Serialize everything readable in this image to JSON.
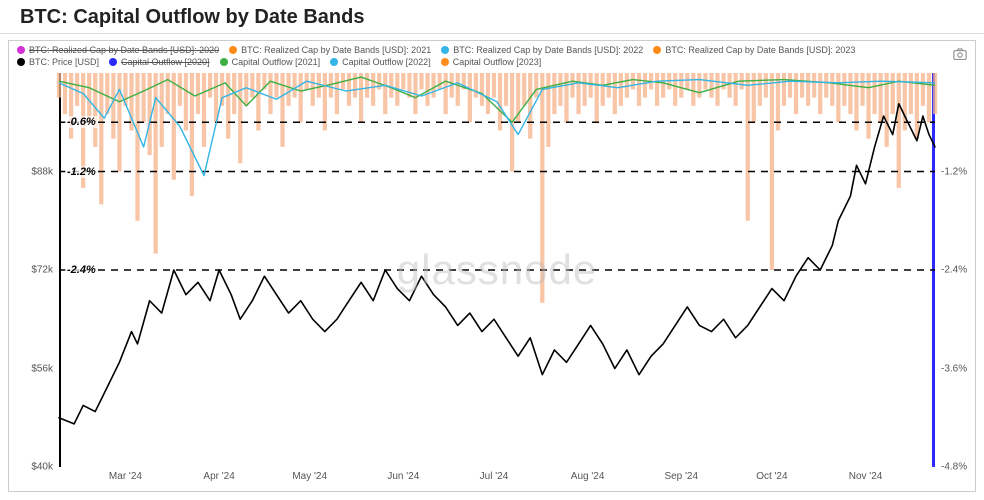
{
  "title": "BTC: Capital Outflow by Date Bands",
  "watermark": "glassnode",
  "legend": [
    {
      "label": "BTC: Realized Cap by Date Bands [USD]: 2020",
      "color": "#d633d6",
      "strike": true
    },
    {
      "label": "BTC: Realized Cap by Date Bands [USD]: 2021",
      "color": "#ff8c1a",
      "strike": false
    },
    {
      "label": "BTC: Realized Cap by Date Bands [USD]: 2022",
      "color": "#33b5e5",
      "strike": false
    },
    {
      "label": "BTC: Realized Cap by Date Bands [USD]: 2023",
      "color": "#ff8c1a",
      "strike": false
    },
    {
      "label": "BTC: Price [USD]",
      "color": "#000000",
      "strike": false
    },
    {
      "label": "Capital Outflow [2020]",
      "color": "#2a2afc",
      "strike": true
    },
    {
      "label": "Capital Outflow [2021]",
      "color": "#3cb043",
      "strike": false
    },
    {
      "label": "Capital Outflow [2022]",
      "color": "#33b5e5",
      "strike": false
    },
    {
      "label": "Capital Outflow [2023]",
      "color": "#ff8c1a",
      "strike": false
    }
  ],
  "y_left": {
    "min": 40000,
    "max": 104000,
    "ticks": [
      {
        "v": 40000,
        "label": "$40k"
      },
      {
        "v": 56000,
        "label": "$56k"
      },
      {
        "v": 72000,
        "label": "$72k"
      },
      {
        "v": 88000,
        "label": "$88k"
      }
    ]
  },
  "y_right": {
    "min": -4.8,
    "max": 0,
    "ticks": [
      {
        "v": -4.8,
        "label": "-4.8%"
      },
      {
        "v": -3.6,
        "label": "-3.6%"
      },
      {
        "v": -2.4,
        "label": "-2.4%"
      },
      {
        "v": -1.2,
        "label": "-1.2%"
      }
    ]
  },
  "x_axis": {
    "min": 0,
    "max": 290,
    "ticks": [
      {
        "v": 22,
        "label": "Mar '24"
      },
      {
        "v": 53,
        "label": "Apr '24"
      },
      {
        "v": 83,
        "label": "May '24"
      },
      {
        "v": 114,
        "label": "Jun '24"
      },
      {
        "v": 144,
        "label": "Jul '24"
      },
      {
        "v": 175,
        "label": "Aug '24"
      },
      {
        "v": 206,
        "label": "Sep '24"
      },
      {
        "v": 236,
        "label": "Oct '24"
      },
      {
        "v": 267,
        "label": "Nov '24"
      }
    ]
  },
  "reference_lines": [
    {
      "y_right": -0.6,
      "label": "-0.6%",
      "label_x": 6
    },
    {
      "y_right": -1.2,
      "label": "-1.2%",
      "label_x": 6
    },
    {
      "y_right": -2.4,
      "label": "-2.4%",
      "label_x": 6
    }
  ],
  "price_series": {
    "color": "#000000",
    "width": 1.6,
    "points": [
      [
        0,
        48000
      ],
      [
        5,
        47000
      ],
      [
        8,
        50000
      ],
      [
        12,
        49000
      ],
      [
        16,
        53000
      ],
      [
        20,
        57000
      ],
      [
        24,
        62000
      ],
      [
        26,
        60000
      ],
      [
        30,
        67000
      ],
      [
        34,
        65000
      ],
      [
        38,
        72000
      ],
      [
        42,
        68000
      ],
      [
        46,
        70000
      ],
      [
        50,
        67000
      ],
      [
        53,
        72000
      ],
      [
        57,
        68000
      ],
      [
        60,
        64000
      ],
      [
        64,
        67000
      ],
      [
        68,
        71000
      ],
      [
        72,
        68000
      ],
      [
        76,
        65000
      ],
      [
        80,
        67000
      ],
      [
        84,
        64000
      ],
      [
        88,
        62000
      ],
      [
        92,
        64000
      ],
      [
        96,
        67000
      ],
      [
        100,
        70000
      ],
      [
        104,
        67000
      ],
      [
        108,
        72000
      ],
      [
        112,
        69000
      ],
      [
        116,
        67000
      ],
      [
        120,
        71000
      ],
      [
        124,
        68000
      ],
      [
        128,
        66000
      ],
      [
        132,
        63000
      ],
      [
        136,
        65000
      ],
      [
        140,
        62000
      ],
      [
        144,
        64000
      ],
      [
        148,
        61000
      ],
      [
        152,
        58000
      ],
      [
        156,
        61000
      ],
      [
        160,
        55000
      ],
      [
        164,
        59000
      ],
      [
        168,
        57000
      ],
      [
        172,
        60000
      ],
      [
        176,
        63000
      ],
      [
        180,
        60000
      ],
      [
        184,
        56000
      ],
      [
        188,
        59000
      ],
      [
        192,
        55000
      ],
      [
        196,
        58000
      ],
      [
        200,
        60000
      ],
      [
        204,
        63000
      ],
      [
        208,
        66000
      ],
      [
        212,
        63000
      ],
      [
        216,
        62000
      ],
      [
        220,
        64000
      ],
      [
        224,
        61000
      ],
      [
        228,
        63000
      ],
      [
        232,
        66000
      ],
      [
        236,
        69000
      ],
      [
        240,
        67000
      ],
      [
        244,
        71000
      ],
      [
        248,
        74000
      ],
      [
        252,
        72000
      ],
      [
        256,
        76000
      ],
      [
        258,
        80000
      ],
      [
        262,
        84000
      ],
      [
        264,
        89000
      ],
      [
        267,
        86000
      ],
      [
        270,
        92000
      ],
      [
        273,
        97000
      ],
      [
        276,
        94000
      ],
      [
        278,
        99000
      ],
      [
        281,
        96000
      ],
      [
        284,
        93000
      ],
      [
        286,
        97000
      ],
      [
        288,
        94000
      ],
      [
        290,
        92000
      ]
    ]
  },
  "outflow_lines": [
    {
      "name": "2021",
      "color": "#3cb043",
      "width": 1.4,
      "points": [
        [
          0,
          -0.1
        ],
        [
          10,
          -0.18
        ],
        [
          20,
          -0.35
        ],
        [
          28,
          -0.22
        ],
        [
          36,
          -0.08
        ],
        [
          45,
          -0.28
        ],
        [
          55,
          -0.12
        ],
        [
          62,
          -0.4
        ],
        [
          70,
          -0.1
        ],
        [
          80,
          -0.22
        ],
        [
          90,
          -0.14
        ],
        [
          100,
          -0.05
        ],
        [
          110,
          -0.18
        ],
        [
          118,
          -0.3
        ],
        [
          128,
          -0.1
        ],
        [
          140,
          -0.25
        ],
        [
          150,
          -0.6
        ],
        [
          158,
          -0.2
        ],
        [
          170,
          -0.1
        ],
        [
          180,
          -0.15
        ],
        [
          190,
          -0.08
        ],
        [
          200,
          -0.12
        ],
        [
          212,
          -0.24
        ],
        [
          225,
          -0.1
        ],
        [
          240,
          -0.08
        ],
        [
          255,
          -0.12
        ],
        [
          268,
          -0.18
        ],
        [
          278,
          -0.1
        ],
        [
          290,
          -0.15
        ]
      ]
    },
    {
      "name": "2022",
      "color": "#33b5e5",
      "width": 1.4,
      "points": [
        [
          0,
          -0.12
        ],
        [
          8,
          -0.25
        ],
        [
          15,
          -0.55
        ],
        [
          20,
          -0.2
        ],
        [
          28,
          -0.9
        ],
        [
          32,
          -0.3
        ],
        [
          40,
          -0.65
        ],
        [
          48,
          -1.25
        ],
        [
          54,
          -0.3
        ],
        [
          62,
          -0.18
        ],
        [
          72,
          -0.32
        ],
        [
          82,
          -0.1
        ],
        [
          95,
          -0.22
        ],
        [
          108,
          -0.15
        ],
        [
          120,
          -0.28
        ],
        [
          132,
          -0.12
        ],
        [
          145,
          -0.35
        ],
        [
          152,
          -0.75
        ],
        [
          160,
          -0.2
        ],
        [
          172,
          -0.12
        ],
        [
          185,
          -0.18
        ],
        [
          198,
          -0.1
        ],
        [
          212,
          -0.08
        ],
        [
          228,
          -0.15
        ],
        [
          242,
          -0.1
        ],
        [
          258,
          -0.12
        ],
        [
          272,
          -0.1
        ],
        [
          290,
          -0.12
        ]
      ]
    }
  ],
  "outflow_bars": {
    "name": "2023",
    "color": "#f5b28a",
    "opacity": 0.75,
    "bar_width": 1.4,
    "points": [
      [
        0,
        -0.3
      ],
      [
        2,
        -0.5
      ],
      [
        4,
        -0.8
      ],
      [
        6,
        -0.4
      ],
      [
        8,
        -1.4
      ],
      [
        10,
        -0.6
      ],
      [
        12,
        -0.9
      ],
      [
        14,
        -1.6
      ],
      [
        16,
        -0.5
      ],
      [
        18,
        -0.8
      ],
      [
        20,
        -1.2
      ],
      [
        22,
        -0.4
      ],
      [
        24,
        -0.7
      ],
      [
        26,
        -1.8
      ],
      [
        28,
        -0.6
      ],
      [
        30,
        -1.0
      ],
      [
        32,
        -2.2
      ],
      [
        34,
        -0.9
      ],
      [
        36,
        -0.5
      ],
      [
        38,
        -1.3
      ],
      [
        40,
        -0.4
      ],
      [
        42,
        -0.7
      ],
      [
        44,
        -1.5
      ],
      [
        46,
        -0.5
      ],
      [
        48,
        -0.9
      ],
      [
        50,
        -0.3
      ],
      [
        52,
        -0.6
      ],
      [
        54,
        -0.4
      ],
      [
        56,
        -0.8
      ],
      [
        58,
        -0.5
      ],
      [
        60,
        -1.1
      ],
      [
        62,
        -0.4
      ],
      [
        64,
        -0.3
      ],
      [
        66,
        -0.7
      ],
      [
        68,
        -0.2
      ],
      [
        70,
        -0.5
      ],
      [
        72,
        -0.3
      ],
      [
        74,
        -0.9
      ],
      [
        76,
        -0.4
      ],
      [
        78,
        -0.3
      ],
      [
        80,
        -0.6
      ],
      [
        82,
        -0.2
      ],
      [
        84,
        -0.4
      ],
      [
        86,
        -0.3
      ],
      [
        88,
        -0.7
      ],
      [
        90,
        -0.3
      ],
      [
        92,
        -0.5
      ],
      [
        94,
        -0.2
      ],
      [
        96,
        -0.4
      ],
      [
        98,
        -0.3
      ],
      [
        100,
        -0.6
      ],
      [
        102,
        -0.3
      ],
      [
        104,
        -0.4
      ],
      [
        106,
        -0.2
      ],
      [
        108,
        -0.5
      ],
      [
        110,
        -0.3
      ],
      [
        112,
        -0.4
      ],
      [
        114,
        -0.2
      ],
      [
        116,
        -0.3
      ],
      [
        118,
        -0.5
      ],
      [
        120,
        -0.2
      ],
      [
        122,
        -0.4
      ],
      [
        124,
        -0.3
      ],
      [
        126,
        -0.2
      ],
      [
        128,
        -0.5
      ],
      [
        130,
        -0.3
      ],
      [
        132,
        -0.4
      ],
      [
        134,
        -0.2
      ],
      [
        136,
        -0.6
      ],
      [
        138,
        -0.3
      ],
      [
        140,
        -0.4
      ],
      [
        142,
        -0.5
      ],
      [
        144,
        -0.3
      ],
      [
        146,
        -0.7
      ],
      [
        148,
        -0.4
      ],
      [
        150,
        -1.2
      ],
      [
        152,
        -0.6
      ],
      [
        154,
        -0.4
      ],
      [
        156,
        -0.8
      ],
      [
        158,
        -0.3
      ],
      [
        160,
        -2.8
      ],
      [
        162,
        -0.9
      ],
      [
        164,
        -0.5
      ],
      [
        166,
        -0.4
      ],
      [
        168,
        -0.6
      ],
      [
        170,
        -0.3
      ],
      [
        172,
        -0.5
      ],
      [
        174,
        -0.4
      ],
      [
        176,
        -0.3
      ],
      [
        178,
        -0.6
      ],
      [
        180,
        -0.4
      ],
      [
        182,
        -0.3
      ],
      [
        184,
        -0.5
      ],
      [
        186,
        -0.4
      ],
      [
        188,
        -0.3
      ],
      [
        190,
        -0.2
      ],
      [
        192,
        -0.4
      ],
      [
        194,
        -0.3
      ],
      [
        196,
        -0.2
      ],
      [
        198,
        -0.4
      ],
      [
        200,
        -0.3
      ],
      [
        202,
        -0.2
      ],
      [
        204,
        -0.4
      ],
      [
        206,
        -0.3
      ],
      [
        208,
        -0.2
      ],
      [
        210,
        -0.4
      ],
      [
        212,
        -0.3
      ],
      [
        214,
        -0.2
      ],
      [
        216,
        -0.3
      ],
      [
        218,
        -0.4
      ],
      [
        220,
        -0.2
      ],
      [
        222,
        -0.3
      ],
      [
        224,
        -0.4
      ],
      [
        226,
        -0.2
      ],
      [
        228,
        -1.8
      ],
      [
        230,
        -0.6
      ],
      [
        232,
        -0.4
      ],
      [
        234,
        -0.3
      ],
      [
        236,
        -2.4
      ],
      [
        238,
        -0.7
      ],
      [
        240,
        -0.4
      ],
      [
        242,
        -0.3
      ],
      [
        244,
        -0.5
      ],
      [
        246,
        -0.3
      ],
      [
        248,
        -0.4
      ],
      [
        250,
        -0.3
      ],
      [
        252,
        -0.5
      ],
      [
        254,
        -0.3
      ],
      [
        256,
        -0.4
      ],
      [
        258,
        -0.6
      ],
      [
        260,
        -0.4
      ],
      [
        262,
        -0.5
      ],
      [
        264,
        -0.7
      ],
      [
        266,
        -0.4
      ],
      [
        268,
        -0.8
      ],
      [
        270,
        -0.5
      ],
      [
        272,
        -0.6
      ],
      [
        274,
        -0.9
      ],
      [
        276,
        -0.5
      ],
      [
        278,
        -1.4
      ],
      [
        280,
        -0.7
      ],
      [
        282,
        -0.5
      ],
      [
        284,
        -0.8
      ],
      [
        286,
        -0.4
      ],
      [
        288,
        -0.6
      ],
      [
        290,
        -0.5
      ]
    ]
  },
  "chart_style": {
    "background": "#ffffff",
    "border": "#cccccc",
    "axis_font_size": 10,
    "axis_color": "#555555"
  }
}
